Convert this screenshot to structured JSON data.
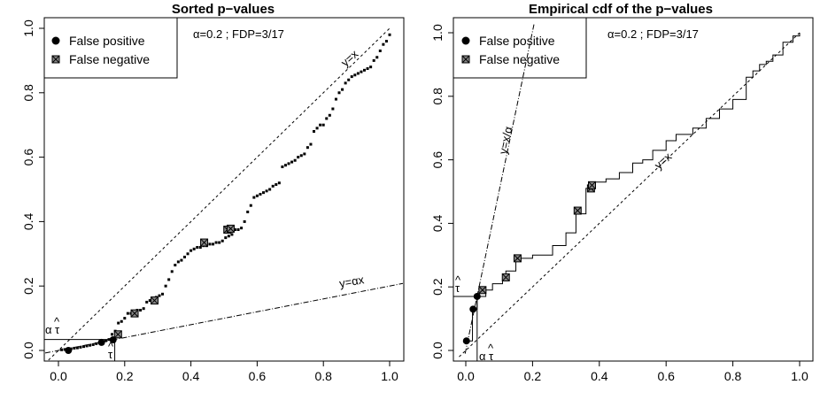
{
  "chart_data": [
    {
      "type": "scatter",
      "title": "Sorted p−values",
      "xlim": [
        0,
        1
      ],
      "ylim": [
        0,
        1
      ],
      "x_ticks": [
        "0.0",
        "0.2",
        "0.4",
        "0.6",
        "0.8",
        "1.0"
      ],
      "y_ticks": [
        "0.0",
        "0.2",
        "0.4",
        "0.6",
        "0.8",
        "1.0"
      ],
      "legend": {
        "placement": "top-left",
        "entries": [
          "False positive",
          "False negative"
        ]
      },
      "info_text": "α=0.2 ; FDP=3/17",
      "line_labels": {
        "identity": "y=x",
        "alpha": "y=αx"
      },
      "threshold_labels": {
        "alpha_tau": "α",
        "tau": "τ",
        "hat": "^"
      },
      "threshold": {
        "tau": 0.17,
        "alpha_tau": 0.034
      },
      "points_y": [
        0.002,
        0.003,
        0.004,
        0.005,
        0.007,
        0.008,
        0.01,
        0.012,
        0.014,
        0.016,
        0.018,
        0.021,
        0.024,
        0.027,
        0.03,
        0.034,
        0.05,
        0.06,
        0.085,
        0.09,
        0.1,
        0.115,
        0.115,
        0.12,
        0.125,
        0.125,
        0.13,
        0.15,
        0.155,
        0.16,
        0.165,
        0.17,
        0.175,
        0.2,
        0.22,
        0.245,
        0.265,
        0.275,
        0.28,
        0.29,
        0.3,
        0.31,
        0.315,
        0.32,
        0.32,
        0.325,
        0.325,
        0.33,
        0.33,
        0.335,
        0.335,
        0.34,
        0.35,
        0.355,
        0.36,
        0.375,
        0.375,
        0.38,
        0.4,
        0.43,
        0.45,
        0.475,
        0.48,
        0.485,
        0.49,
        0.495,
        0.5,
        0.51,
        0.515,
        0.52,
        0.57,
        0.575,
        0.58,
        0.585,
        0.59,
        0.6,
        0.605,
        0.61,
        0.63,
        0.64,
        0.68,
        0.69,
        0.7,
        0.7,
        0.72,
        0.73,
        0.75,
        0.78,
        0.8,
        0.81,
        0.83,
        0.84,
        0.85,
        0.855,
        0.86,
        0.865,
        0.87,
        0.875,
        0.88,
        0.9,
        0.91,
        0.93,
        0.95,
        0.96,
        0.98
      ],
      "false_positive": [
        [
          0.03,
          0.0
        ],
        [
          0.13,
          0.025
        ],
        [
          0.165,
          0.033
        ]
      ],
      "false_negative": [
        [
          0.18,
          0.05
        ],
        [
          0.23,
          0.115
        ],
        [
          0.29,
          0.155
        ],
        [
          0.44,
          0.335
        ],
        [
          0.51,
          0.375
        ],
        [
          0.52,
          0.378
        ]
      ]
    },
    {
      "type": "line",
      "title": "Empirical cdf of the p−values",
      "xlim": [
        0,
        1
      ],
      "ylim": [
        0,
        1
      ],
      "x_ticks": [
        "0.0",
        "0.2",
        "0.4",
        "0.6",
        "0.8",
        "1.0"
      ],
      "y_ticks": [
        "0.0",
        "0.2",
        "0.4",
        "0.6",
        "0.8",
        "1.0"
      ],
      "legend": {
        "placement": "top-left",
        "entries": [
          "False positive",
          "False negative"
        ]
      },
      "info_text": "α=0.2 ; FDP=3/17",
      "line_labels": {
        "identity": "y=x",
        "alpha": "y=x/α"
      },
      "threshold_labels": {
        "alpha_tau": "α",
        "tau": "τ",
        "hat": "^"
      },
      "threshold": {
        "tau": 0.17,
        "alpha_tau": 0.034
      },
      "cdf_steps": [
        [
          0.0,
          0.03
        ],
        [
          0.02,
          0.13
        ],
        [
          0.034,
          0.17
        ],
        [
          0.06,
          0.19
        ],
        [
          0.08,
          0.21
        ],
        [
          0.11,
          0.23
        ],
        [
          0.12,
          0.25
        ],
        [
          0.15,
          0.29
        ],
        [
          0.2,
          0.3
        ],
        [
          0.26,
          0.33
        ],
        [
          0.3,
          0.37
        ],
        [
          0.33,
          0.43
        ],
        [
          0.36,
          0.51
        ],
        [
          0.38,
          0.53
        ],
        [
          0.42,
          0.54
        ],
        [
          0.46,
          0.56
        ],
        [
          0.5,
          0.59
        ],
        [
          0.53,
          0.6
        ],
        [
          0.56,
          0.63
        ],
        [
          0.6,
          0.66
        ],
        [
          0.63,
          0.68
        ],
        [
          0.68,
          0.7
        ],
        [
          0.72,
          0.73
        ],
        [
          0.76,
          0.76
        ],
        [
          0.8,
          0.79
        ],
        [
          0.84,
          0.86
        ],
        [
          0.86,
          0.88
        ],
        [
          0.88,
          0.9
        ],
        [
          0.9,
          0.91
        ],
        [
          0.92,
          0.93
        ],
        [
          0.95,
          0.97
        ],
        [
          0.98,
          0.99
        ],
        [
          1.0,
          1.0
        ]
      ],
      "false_positive": [
        [
          0.002,
          0.03
        ],
        [
          0.022,
          0.13
        ],
        [
          0.034,
          0.17
        ]
      ],
      "false_negative": [
        [
          0.05,
          0.19
        ],
        [
          0.12,
          0.23
        ],
        [
          0.155,
          0.29
        ],
        [
          0.335,
          0.44
        ],
        [
          0.375,
          0.51
        ],
        [
          0.378,
          0.52
        ]
      ]
    }
  ]
}
